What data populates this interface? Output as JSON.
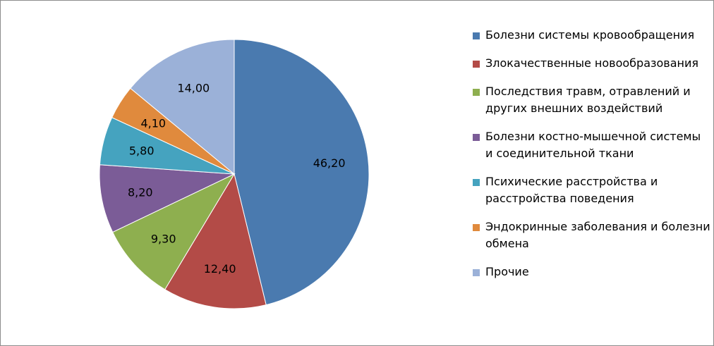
{
  "chart_data": {
    "type": "pie",
    "title": "",
    "legend_position": "right",
    "slices": [
      {
        "label": "Болезни системы кровообращения",
        "value": 46.2,
        "value_label": "46,20",
        "color": "#4A7AAF"
      },
      {
        "label": "Злокачественные новообразования",
        "value": 12.4,
        "value_label": "12,40",
        "color": "#B34B47"
      },
      {
        "label": "Последствия травм, отравлений и других внешних воздействий",
        "value": 9.3,
        "value_label": "9,30",
        "color": "#8EAF4F"
      },
      {
        "label": "Болезни костно-мышечной системы и соединительной ткани",
        "value": 8.2,
        "value_label": "8,20",
        "color": "#7B5C97"
      },
      {
        "label": "Психические расстройства и расстройства поведения",
        "value": 5.8,
        "value_label": "5,80",
        "color": "#45A3BF"
      },
      {
        "label": "Эндокринные заболевания и болезни обмена",
        "value": 4.1,
        "value_label": "4,10",
        "color": "#E08A3D"
      },
      {
        "label": "Прочие",
        "value": 14.0,
        "value_label": "14,00",
        "color": "#9BB1D8"
      }
    ]
  }
}
